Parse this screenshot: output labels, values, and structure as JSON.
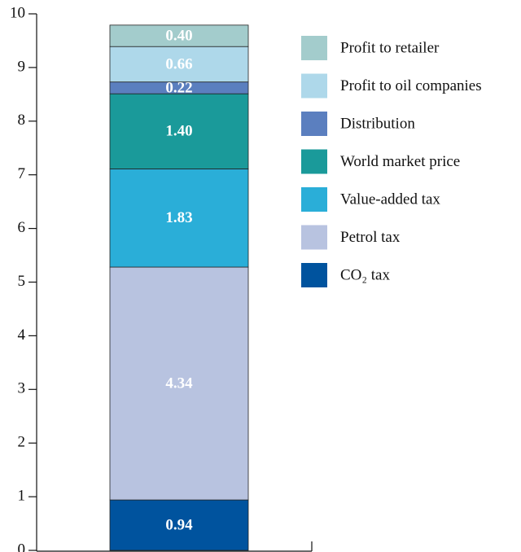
{
  "chart_data": {
    "type": "stacked_bar",
    "categories": [
      null
    ],
    "series": [
      {
        "name": "CO₂ tax",
        "color": "#00539e",
        "values": [
          0.94
        ],
        "value_labels": [
          "0.94"
        ]
      },
      {
        "name": "Petrol tax",
        "color": "#b8c3e0",
        "values": [
          4.34
        ],
        "value_labels": [
          "4.34"
        ]
      },
      {
        "name": "Value-added tax",
        "color": "#2aaed8",
        "values": [
          1.83
        ],
        "value_labels": [
          "1.83"
        ]
      },
      {
        "name": "World market price",
        "color": "#1a9a9a",
        "values": [
          1.4
        ],
        "value_labels": [
          "1.40"
        ]
      },
      {
        "name": "Distribution",
        "color": "#5b7fbf",
        "values": [
          0.22
        ],
        "value_labels": [
          "0.22"
        ]
      },
      {
        "name": "Profit to oil companies",
        "color": "#aed8ea",
        "values": [
          0.66
        ],
        "value_labels": [
          "0.66"
        ]
      },
      {
        "name": "Profit to retailer",
        "color": "#a3cccc",
        "values": [
          0.4
        ],
        "value_labels": [
          "0.40"
        ]
      }
    ],
    "ylim": [
      0,
      10
    ],
    "yticks": [
      0,
      1,
      2,
      3,
      4,
      5,
      6,
      7,
      8,
      9,
      10
    ],
    "legend": "right"
  }
}
